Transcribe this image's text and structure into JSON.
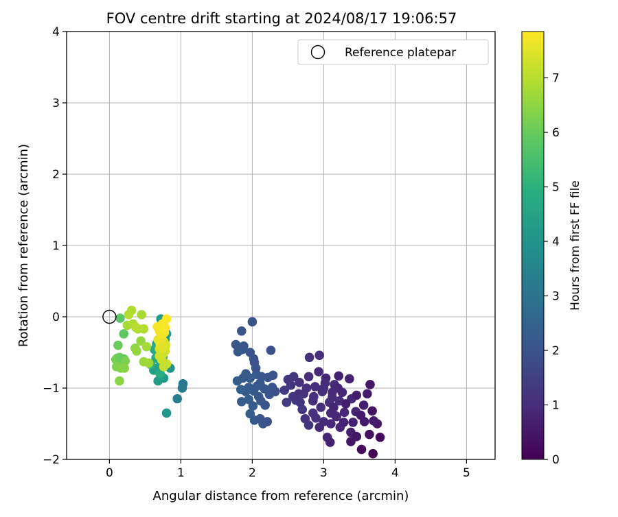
{
  "chart_data": {
    "type": "scatter",
    "title": "FOV centre drift starting at 2024/08/17 19:06:57",
    "xlabel": "Angular distance from reference (arcmin)",
    "ylabel": "Rotation from reference (arcmin)",
    "xlim": [
      -0.6,
      5.4
    ],
    "ylim": [
      -2,
      4
    ],
    "xticks": [
      0,
      1,
      2,
      3,
      4,
      5
    ],
    "yticks": [
      -2,
      -1,
      0,
      1,
      2,
      3,
      4
    ],
    "xtick_labels": [
      "0",
      "1",
      "2",
      "3",
      "4",
      "5"
    ],
    "ytick_labels": [
      "−2",
      "−1",
      "0",
      "1",
      "2",
      "3",
      "4"
    ],
    "grid": true,
    "colormap": "viridis",
    "colorbar": {
      "label": "Hours from first FF file",
      "range": [
        0,
        7.85
      ],
      "ticks": [
        0,
        1,
        2,
        3,
        4,
        5,
        6,
        7
      ],
      "tick_labels": [
        "0",
        "1",
        "2",
        "3",
        "4",
        "5",
        "6",
        "7"
      ]
    },
    "legend": {
      "placement": "top-right",
      "label": "Reference platepar"
    },
    "reference_point": {
      "x": 0,
      "y": 0
    },
    "series": [
      {
        "values": [
          [
            3.69,
            -1.92
          ],
          [
            3.53,
            -1.86
          ],
          [
            3.79,
            -1.69
          ],
          [
            3.64,
            -1.65
          ],
          [
            3.38,
            -1.75
          ],
          [
            3.75,
            -1.5
          ],
          [
            3.7,
            -1.46
          ],
          [
            3.57,
            -1.47
          ],
          [
            3.38,
            -1.62
          ],
          [
            3.09,
            -1.76
          ],
          [
            3.05,
            -1.69
          ],
          [
            3.41,
            -1.48
          ],
          [
            3.23,
            -1.55
          ],
          [
            3.1,
            -1.5
          ],
          [
            3.0,
            -1.47
          ],
          [
            3.17,
            -1.39
          ],
          [
            3.29,
            -1.34
          ],
          [
            3.45,
            -1.33
          ],
          [
            3.56,
            -1.24
          ],
          [
            3.61,
            -1.08
          ],
          [
            3.65,
            -0.95
          ],
          [
            3.39,
            -1.15
          ],
          [
            3.22,
            -1.18
          ],
          [
            3.08,
            -1.2
          ],
          [
            2.96,
            -1.27
          ],
          [
            2.85,
            -1.35
          ],
          [
            2.74,
            -1.43
          ],
          [
            2.79,
            -1.52
          ],
          [
            2.89,
            -1.42
          ],
          [
            2.7,
            -1.3
          ],
          [
            2.61,
            -1.17
          ],
          [
            2.72,
            -1.08
          ],
          [
            2.86,
            -1.12
          ],
          [
            2.98,
            -1.05
          ],
          [
            3.12,
            -1.13
          ],
          [
            3.26,
            -1.06
          ],
          [
            3.36,
            -0.87
          ],
          [
            3.21,
            -0.83
          ],
          [
            3.03,
            -0.86
          ],
          [
            2.93,
            -0.77
          ],
          [
            2.79,
            -0.84
          ],
          [
            2.66,
            -0.92
          ],
          [
            2.54,
            -0.96
          ],
          [
            2.45,
            -1.03
          ],
          [
            2.57,
            -1.12
          ],
          [
            2.48,
            -1.2
          ],
          [
            3.15,
            -0.95
          ],
          [
            3.02,
            -0.93
          ],
          [
            2.88,
            -0.98
          ],
          [
            2.76,
            -1.0
          ],
          [
            3.31,
            -1.22
          ],
          [
            3.46,
            -1.1
          ],
          [
            3.14,
            -1.27
          ],
          [
            2.94,
            -1.55
          ],
          [
            3.18,
            -1.4
          ],
          [
            2.65,
            -1.08
          ],
          [
            3.28,
            -1.48
          ],
          [
            3.1,
            -1.35
          ],
          [
            2.94,
            -0.54
          ],
          [
            2.8,
            -0.57
          ],
          [
            3.0,
            -1.0
          ],
          [
            3.2,
            -1.0
          ],
          [
            2.5,
            -0.88
          ],
          [
            2.67,
            -1.2
          ],
          [
            3.68,
            -1.32
          ],
          [
            3.46,
            -1.68
          ],
          [
            3.12,
            -1.06
          ],
          [
            2.85,
            -1.18
          ],
          [
            2.58,
            -0.84
          ],
          [
            3.52,
            -1.38
          ]
        ],
        "hours": [
          0.05,
          0.25,
          0.2,
          0.35,
          0.45,
          0.5,
          0.6,
          0.55,
          0.65,
          0.7,
          0.8,
          0.75,
          0.85,
          0.9,
          0.95,
          1.0,
          0.9,
          0.8,
          0.7,
          0.6,
          0.5,
          0.85,
          0.95,
          1.0,
          1.05,
          1.1,
          1.15,
          1.2,
          1.1,
          1.25,
          1.3,
          1.2,
          1.1,
          1.0,
          0.95,
          0.85,
          0.75,
          0.7,
          0.8,
          0.9,
          1.0,
          1.1,
          1.2,
          1.3,
          1.25,
          1.35,
          0.95,
          1.0,
          1.05,
          1.1,
          0.65,
          0.6,
          0.8,
          0.9,
          0.85,
          1.15,
          0.75,
          0.88,
          1.0,
          1.1,
          0.98,
          0.8,
          1.25,
          1.2,
          0.4,
          0.45,
          0.92,
          1.05,
          1.28,
          0.55
        ]
      },
      {
        "values": [
          [
            2.0,
            -0.07
          ],
          [
            1.85,
            -0.2
          ],
          [
            1.77,
            -0.39
          ],
          [
            1.8,
            -0.49
          ],
          [
            1.86,
            -0.46
          ],
          [
            1.88,
            -0.41
          ],
          [
            1.97,
            -0.5
          ],
          [
            2.02,
            -0.59
          ],
          [
            2.03,
            -0.64
          ],
          [
            2.26,
            -0.47
          ],
          [
            1.91,
            -0.8
          ],
          [
            1.97,
            -0.86
          ],
          [
            2.06,
            -0.81
          ],
          [
            2.13,
            -0.84
          ],
          [
            2.22,
            -0.85
          ],
          [
            2.29,
            -0.82
          ],
          [
            1.79,
            -0.9
          ],
          [
            1.84,
            -1.02
          ],
          [
            1.95,
            -0.99
          ],
          [
            2.02,
            -1.04
          ],
          [
            2.17,
            -1.01
          ],
          [
            2.28,
            -0.99
          ],
          [
            2.11,
            -0.93
          ],
          [
            1.85,
            -1.19
          ],
          [
            1.95,
            -1.16
          ],
          [
            2.01,
            -1.25
          ],
          [
            2.12,
            -1.18
          ],
          [
            2.18,
            -1.24
          ],
          [
            1.97,
            -1.36
          ],
          [
            2.03,
            -1.45
          ],
          [
            2.11,
            -1.43
          ],
          [
            2.15,
            -1.5
          ],
          [
            2.21,
            -1.47
          ],
          [
            2.32,
            -1.05
          ],
          [
            1.87,
            -0.86
          ],
          [
            2.05,
            -0.72
          ],
          [
            2.09,
            -1.12
          ],
          [
            1.91,
            -1.05
          ],
          [
            2.24,
            -1.09
          ],
          [
            2.07,
            -0.97
          ]
        ],
        "hours": [
          2.0,
          2.05,
          2.1,
          2.15,
          2.2,
          2.1,
          2.05,
          2.0,
          1.95,
          1.9,
          2.2,
          2.25,
          2.3,
          2.15,
          2.1,
          2.05,
          2.3,
          2.35,
          2.25,
          2.2,
          2.1,
          2.0,
          2.15,
          2.3,
          2.35,
          2.2,
          2.1,
          2.05,
          2.3,
          2.2,
          2.1,
          2.0,
          1.95,
          1.9,
          2.25,
          2.0,
          2.15,
          2.28,
          2.05,
          2.18
        ]
      },
      {
        "values": [
          [
            1.03,
            -0.94
          ],
          [
            1.02,
            -1.0
          ],
          [
            0.95,
            -1.15
          ],
          [
            0.8,
            -1.35
          ],
          [
            0.76,
            -0.86
          ],
          [
            0.68,
            -0.9
          ],
          [
            0.62,
            -0.75
          ],
          [
            0.7,
            -0.7
          ],
          [
            0.72,
            -0.63
          ],
          [
            0.65,
            -0.58
          ],
          [
            0.68,
            -0.55
          ],
          [
            0.75,
            -0.56
          ],
          [
            0.7,
            -0.45
          ],
          [
            0.66,
            -0.38
          ],
          [
            0.74,
            -0.41
          ],
          [
            0.78,
            -0.31
          ],
          [
            0.72,
            -0.03
          ],
          [
            0.8,
            -0.24
          ],
          [
            0.85,
            -0.72
          ],
          [
            0.63,
            -0.46
          ],
          [
            0.71,
            -0.8
          ],
          [
            0.58,
            -0.67
          ]
        ],
        "hours": [
          3.1,
          3.2,
          3.25,
          4.1,
          4.2,
          4.3,
          4.4,
          4.5,
          4.6,
          4.7,
          4.8,
          4.9,
          4.65,
          4.55,
          4.45,
          4.35,
          4.25,
          4.15,
          4.05,
          4.75,
          4.85,
          4.95
        ]
      },
      {
        "values": [
          [
            0.15,
            -0.02
          ],
          [
            0.2,
            -0.24
          ],
          [
            0.12,
            -0.4
          ],
          [
            0.11,
            -0.58
          ],
          [
            0.09,
            -0.6
          ],
          [
            0.15,
            -0.6
          ],
          [
            0.14,
            -0.57
          ],
          [
            0.2,
            -0.59
          ],
          [
            0.22,
            -0.62
          ],
          [
            0.1,
            -0.7
          ],
          [
            0.16,
            -0.72
          ],
          [
            0.21,
            -0.72
          ],
          [
            0.14,
            -0.9
          ],
          [
            0.36,
            -0.44
          ],
          [
            0.38,
            -0.48
          ],
          [
            0.44,
            -0.34
          ],
          [
            0.48,
            -0.63
          ],
          [
            0.55,
            -0.65
          ],
          [
            0.45,
            0.03
          ],
          [
            0.4,
            -0.17
          ],
          [
            0.31,
            0.09
          ],
          [
            0.27,
            0.03
          ],
          [
            0.25,
            -0.12
          ],
          [
            0.33,
            -0.1
          ],
          [
            0.48,
            -0.17
          ],
          [
            0.52,
            -0.42
          ],
          [
            0.37,
            -0.15
          ]
        ],
        "hours": [
          5.8,
          5.9,
          6.0,
          6.1,
          6.2,
          6.15,
          6.05,
          5.95,
          6.25,
          6.3,
          6.35,
          6.4,
          6.45,
          6.5,
          6.55,
          6.6,
          6.65,
          6.7,
          6.8,
          6.85,
          6.9,
          6.95,
          6.75,
          6.88,
          6.92,
          6.78,
          6.98
        ]
      },
      {
        "values": [
          [
            0.8,
            -0.03
          ],
          [
            0.74,
            -0.1
          ],
          [
            0.67,
            -0.14
          ],
          [
            0.7,
            -0.2
          ],
          [
            0.77,
            -0.22
          ],
          [
            0.73,
            -0.28
          ],
          [
            0.68,
            -0.32
          ],
          [
            0.76,
            -0.35
          ],
          [
            0.79,
            -0.4
          ],
          [
            0.7,
            -0.45
          ],
          [
            0.78,
            -0.48
          ],
          [
            0.75,
            -0.52
          ],
          [
            0.73,
            -0.6
          ],
          [
            0.8,
            -0.66
          ],
          [
            0.76,
            -0.7
          ],
          [
            0.71,
            -0.38
          ],
          [
            0.74,
            -0.25
          ],
          [
            0.78,
            -0.15
          ],
          [
            0.7,
            -0.55
          ],
          [
            0.75,
            -0.44
          ]
        ],
        "hours": [
          7.85,
          7.8,
          7.75,
          7.7,
          7.65,
          7.6,
          7.55,
          7.5,
          7.45,
          7.4,
          7.35,
          7.3,
          7.25,
          7.2,
          7.15,
          7.6,
          7.7,
          7.8,
          7.3,
          7.5
        ]
      }
    ]
  }
}
